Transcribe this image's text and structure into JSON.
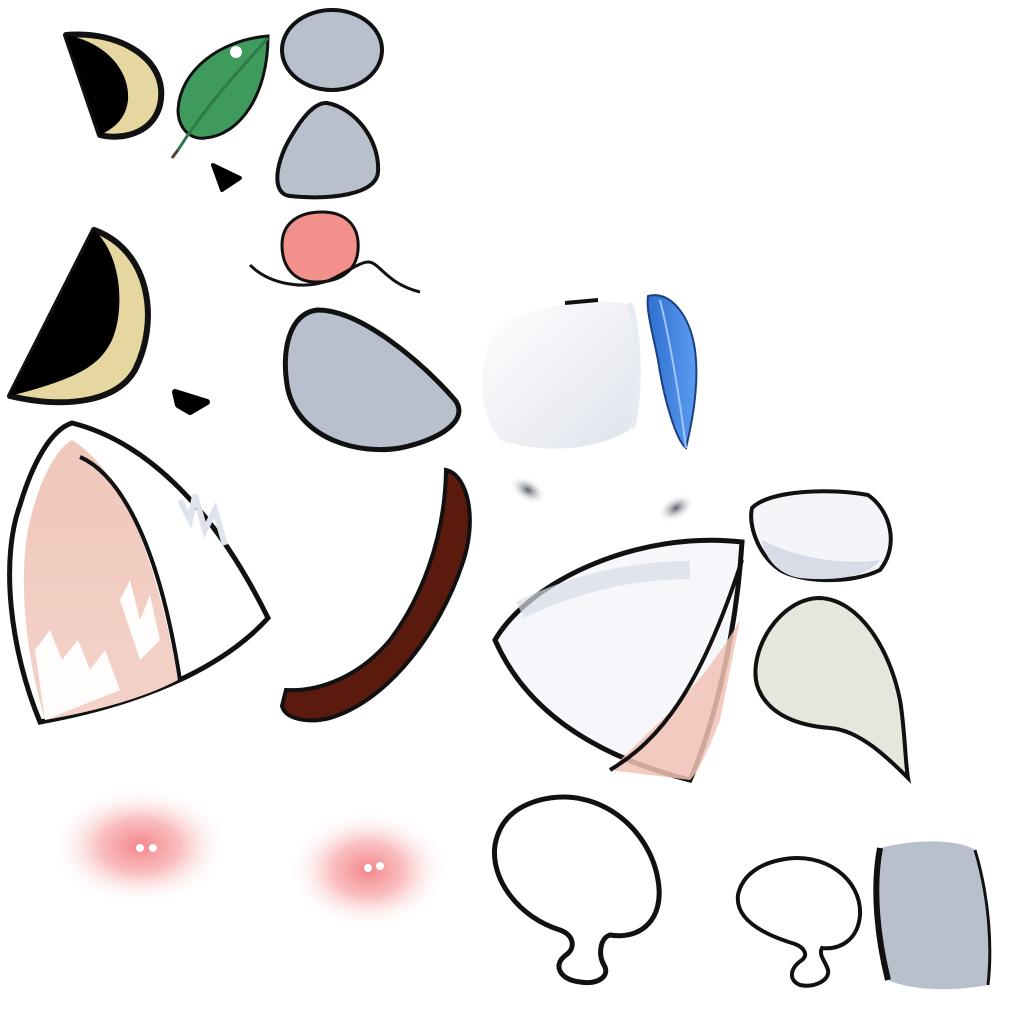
{
  "sheet": {
    "background": "#ffffff",
    "description_free": true
  },
  "palette": {
    "outline": "#111111",
    "eye_black": "#000000",
    "eye_rim": "#e6d7a1",
    "leaf": "#3f9a5e",
    "leaf_dark": "#2f7a49",
    "grey_blue": "#b9c0cd",
    "tongue": "#f2918c",
    "feather_blue": "#3f7fdc",
    "ear_pink": "#f1c2b4",
    "fur_white": "#f6f7fa",
    "fur_shadow": "#d7dce6",
    "mouth_brown": "#5a1a0d",
    "tail_cream": "#e6e6dd",
    "blush": "#f26f74"
  },
  "parts": [
    {
      "name": "eye-crescent-small-icon"
    },
    {
      "name": "leaf-icon"
    },
    {
      "name": "grey-oval-icon"
    },
    {
      "name": "grey-rounded-triangle-icon"
    },
    {
      "name": "nose-small-icon"
    },
    {
      "name": "tongue-mouth-icon"
    },
    {
      "name": "eye-crescent-large-icon"
    },
    {
      "name": "nose-large-icon"
    },
    {
      "name": "grey-paw-pad-icon"
    },
    {
      "name": "white-fur-patch-icon"
    },
    {
      "name": "blue-feather-icon"
    },
    {
      "name": "ear-left-icon"
    },
    {
      "name": "mouth-curve-icon"
    },
    {
      "name": "whisker-dot-left-icon"
    },
    {
      "name": "whisker-dot-right-icon"
    },
    {
      "name": "ear-right-icon"
    },
    {
      "name": "white-oval-icon"
    },
    {
      "name": "tail-curl-icon"
    },
    {
      "name": "blush-left-icon"
    },
    {
      "name": "blush-right-icon"
    },
    {
      "name": "paw-outline-large-icon"
    },
    {
      "name": "paw-outline-small-icon"
    },
    {
      "name": "grey-block-icon"
    }
  ]
}
